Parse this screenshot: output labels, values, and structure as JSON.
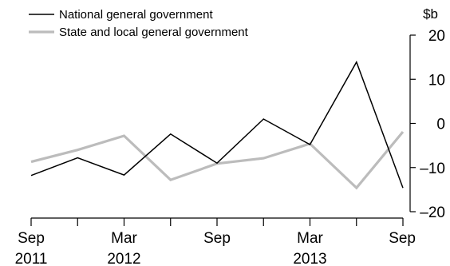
{
  "chart_data": {
    "type": "line",
    "unit": "$b",
    "ylim": [
      -20,
      20
    ],
    "y_ticks": [
      20,
      10,
      0,
      -10,
      -20
    ],
    "y_tick_labels": [
      "20",
      "10",
      "0",
      "–10",
      "–20"
    ],
    "x_ticks": [
      {
        "month": "Sep",
        "year": "2011"
      },
      {
        "month": "",
        "year": ""
      },
      {
        "month": "Mar",
        "year": "2012"
      },
      {
        "month": "",
        "year": ""
      },
      {
        "month": "Sep",
        "year": ""
      },
      {
        "month": "",
        "year": ""
      },
      {
        "month": "Mar",
        "year": "2013"
      },
      {
        "month": "",
        "year": ""
      },
      {
        "month": "Sep",
        "year": ""
      }
    ],
    "x": [
      "Sep 2011",
      "Dec 2011",
      "Mar 2012",
      "Jun 2012",
      "Sep 2012",
      "Dec 2012",
      "Mar 2013",
      "Jun 2013",
      "Sep 2013"
    ],
    "series": [
      {
        "name": "National general government",
        "color": "#000000",
        "values": [
          -11.8,
          -7.8,
          -11.7,
          -2.4,
          -9.0,
          1.0,
          -4.8,
          13.9,
          -14.6
        ]
      },
      {
        "name": "State and local general government",
        "color": "#bcbcbc",
        "values": [
          -8.7,
          -6.0,
          -2.8,
          -12.8,
          -9.1,
          -7.9,
          -4.6,
          -14.6,
          -1.9
        ]
      }
    ],
    "legend_position": "top-left",
    "grid": false
  }
}
